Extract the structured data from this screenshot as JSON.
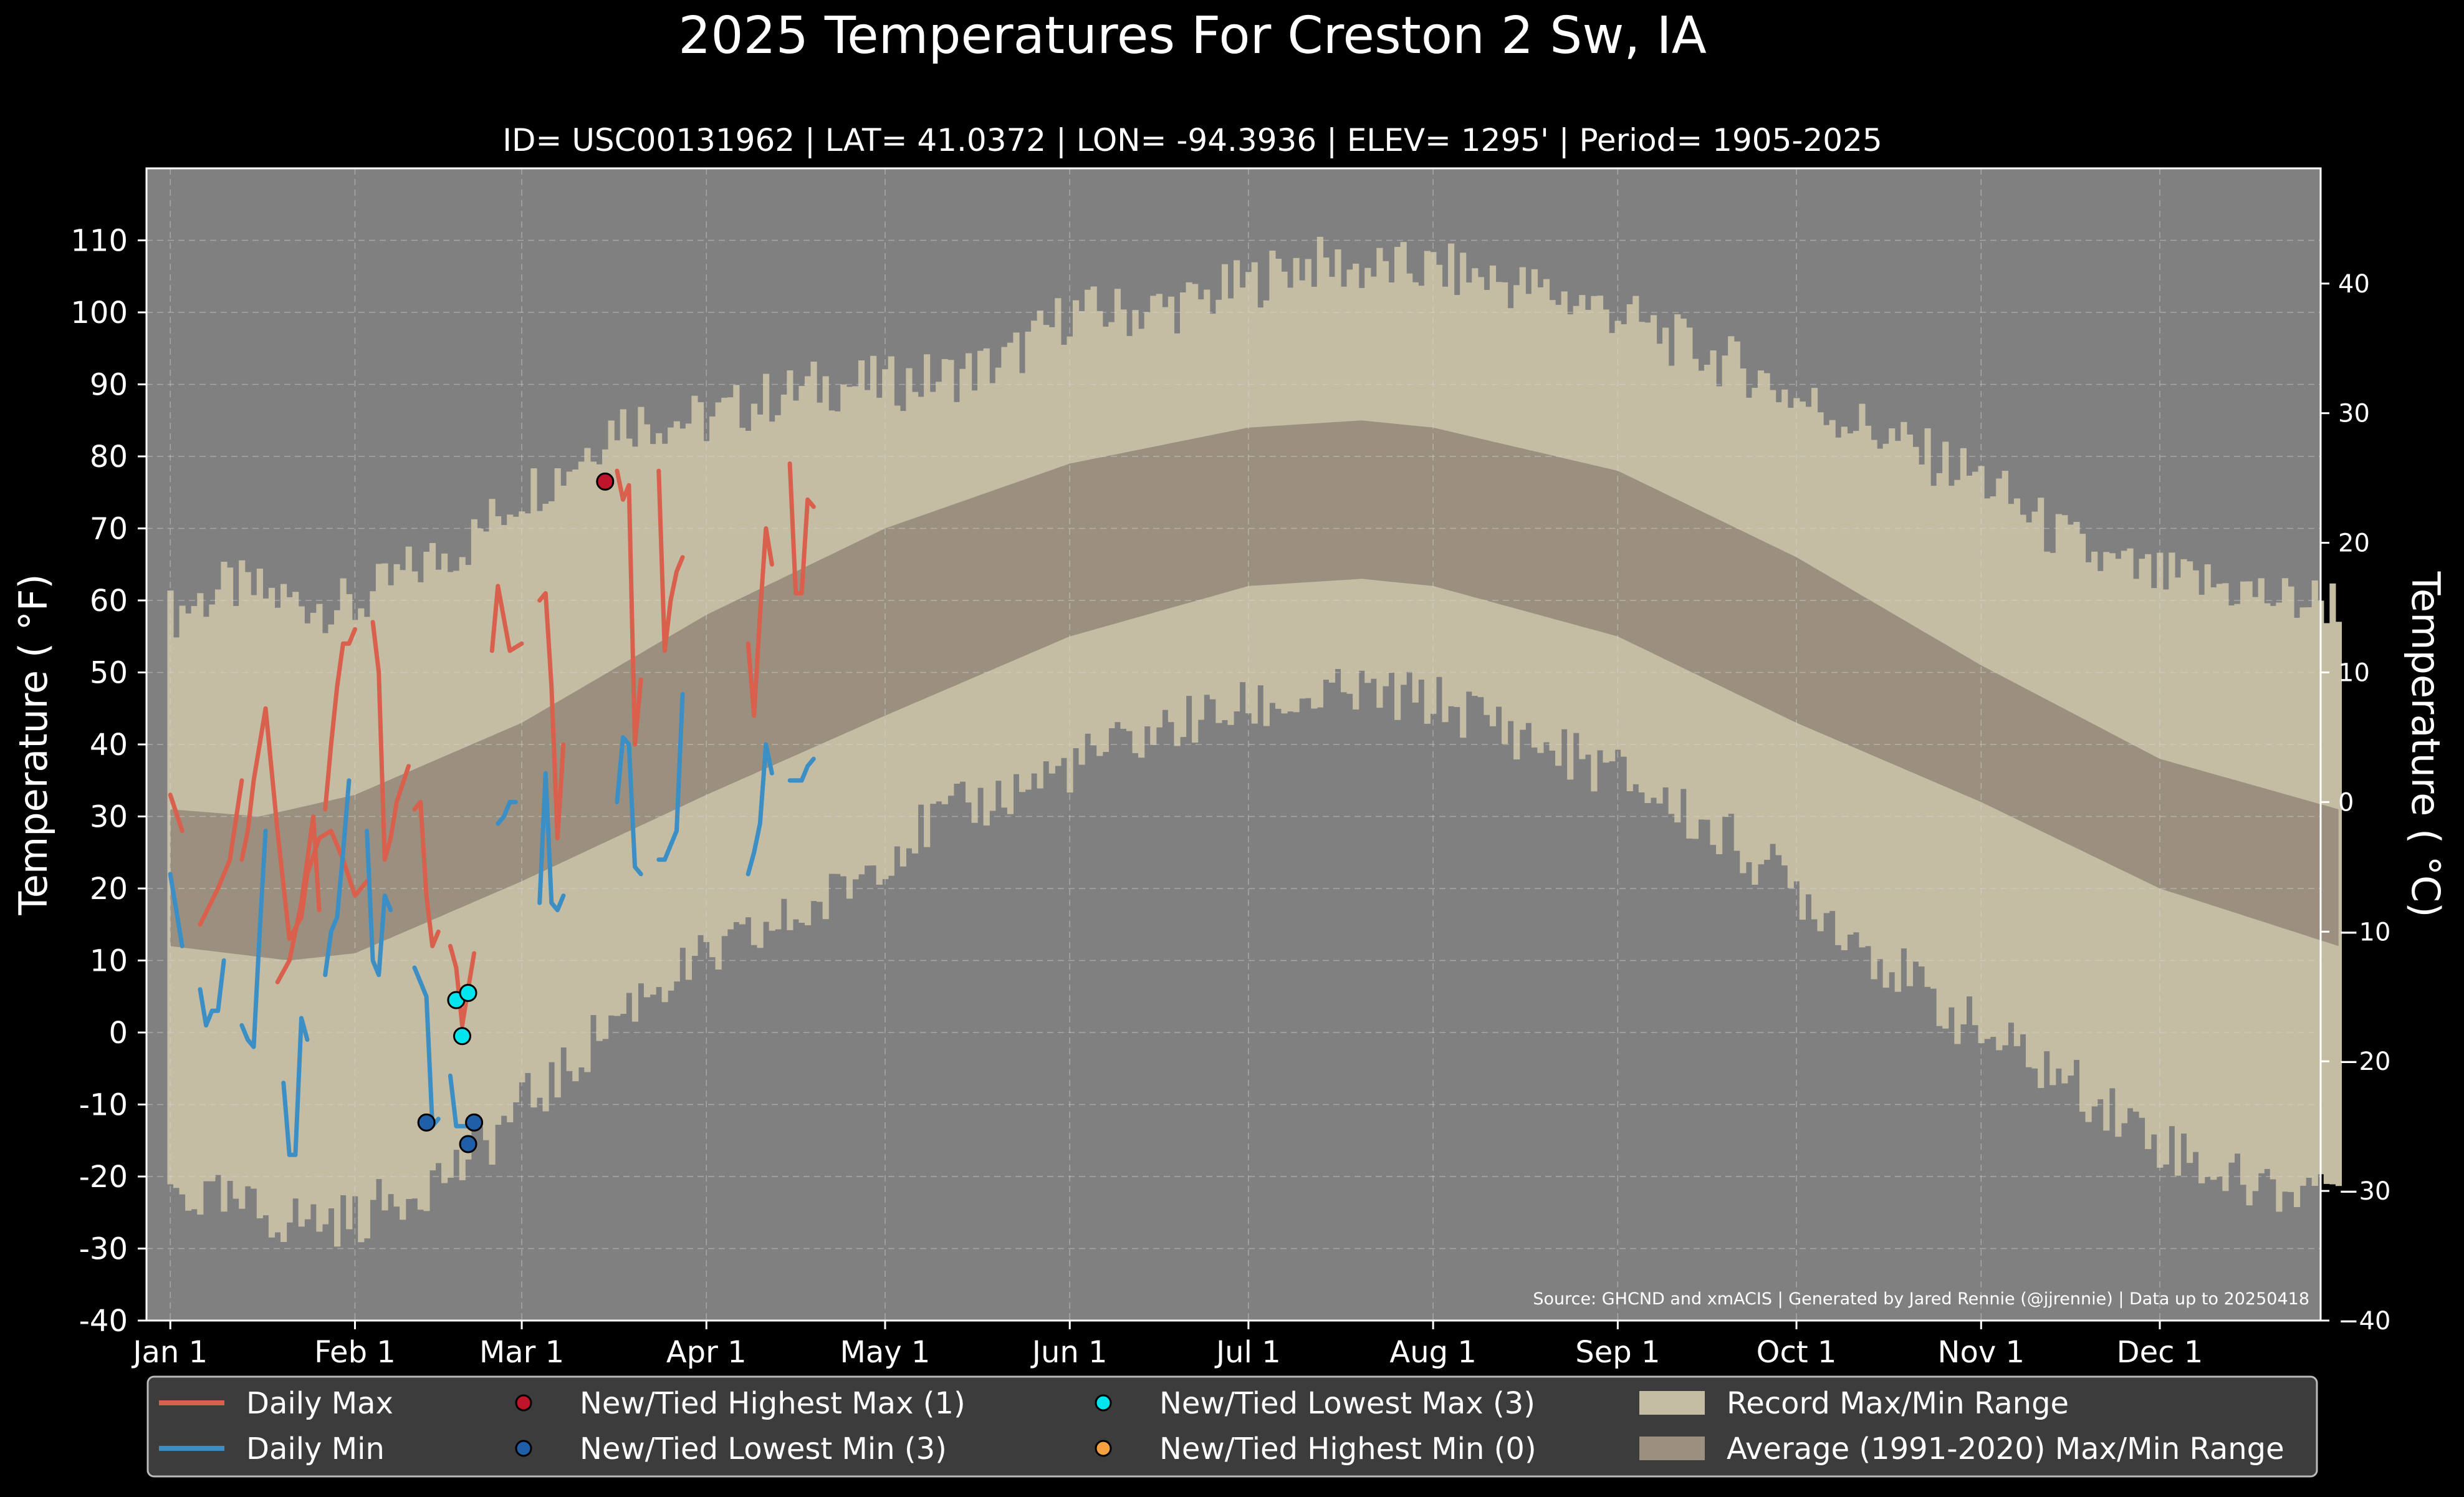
{
  "chart_data": {
    "type": "line",
    "title": "2025 Temperatures For Creston 2 Sw, IA",
    "subtitle": "ID= USC00131962 | LAT= 41.0372 | LON= -94.3936 | ELEV= 1295' | Period= 1905-2025",
    "ylabel": "Temperature ( °F)",
    "ylabel_right": "Temperature ( °C)",
    "ylim": [
      -40,
      120
    ],
    "yticks": [
      -40,
      -30,
      -20,
      -10,
      0,
      10,
      20,
      30,
      40,
      50,
      60,
      70,
      80,
      90,
      100,
      110
    ],
    "yticks_right_c": [
      -40,
      -30,
      -20,
      -10,
      0,
      10,
      20,
      30,
      40
    ],
    "xlim_doy": [
      -4,
      361
    ],
    "xticks": [
      {
        "label": "Jan 1",
        "doy": 0
      },
      {
        "label": "Feb 1",
        "doy": 31
      },
      {
        "label": "Mar 1",
        "doy": 59
      },
      {
        "label": "Apr 1",
        "doy": 90
      },
      {
        "label": "May 1",
        "doy": 120
      },
      {
        "label": "Jun 1",
        "doy": 151
      },
      {
        "label": "Jul 1",
        "doy": 181
      },
      {
        "label": "Aug 1",
        "doy": 212
      },
      {
        "label": "Sep 1",
        "doy": 243
      },
      {
        "label": "Oct 1",
        "doy": 273
      },
      {
        "label": "Nov 1",
        "doy": 304
      },
      {
        "label": "Dec 1",
        "doy": 334
      }
    ],
    "grid": true,
    "legend_position": "bottom",
    "source_note": "Source: GHCND and xmACIS | Generated by Jared Rennie (@jjrennie) | Data up to 20250418",
    "record_max_keypoints": [
      [
        0,
        58
      ],
      [
        10,
        62
      ],
      [
        20,
        60
      ],
      [
        31,
        59
      ],
      [
        40,
        64
      ],
      [
        50,
        68
      ],
      [
        59,
        75
      ],
      [
        66,
        78
      ],
      [
        75,
        85
      ],
      [
        90,
        85
      ],
      [
        100,
        88
      ],
      [
        110,
        90
      ],
      [
        120,
        90
      ],
      [
        130,
        91
      ],
      [
        140,
        93
      ],
      [
        151,
        100
      ],
      [
        160,
        100
      ],
      [
        170,
        101
      ],
      [
        181,
        104
      ],
      [
        190,
        107
      ],
      [
        200,
        106
      ],
      [
        212,
        106
      ],
      [
        220,
        105
      ],
      [
        230,
        103
      ],
      [
        243,
        100
      ],
      [
        255,
        95
      ],
      [
        265,
        92
      ],
      [
        273,
        88
      ],
      [
        285,
        84
      ],
      [
        295,
        80
      ],
      [
        304,
        77
      ],
      [
        315,
        70
      ],
      [
        325,
        65
      ],
      [
        334,
        63
      ],
      [
        345,
        62
      ],
      [
        355,
        60
      ],
      [
        364,
        60
      ]
    ],
    "record_min_keypoints": [
      [
        0,
        -22
      ],
      [
        10,
        -24
      ],
      [
        20,
        -26
      ],
      [
        31,
        -26
      ],
      [
        40,
        -22
      ],
      [
        50,
        -18
      ],
      [
        59,
        -10
      ],
      [
        66,
        -6
      ],
      [
        72,
        0
      ],
      [
        80,
        6
      ],
      [
        90,
        10
      ],
      [
        100,
        14
      ],
      [
        110,
        18
      ],
      [
        120,
        25
      ],
      [
        130,
        30
      ],
      [
        140,
        33
      ],
      [
        151,
        37
      ],
      [
        160,
        40
      ],
      [
        170,
        43
      ],
      [
        181,
        45
      ],
      [
        190,
        46
      ],
      [
        200,
        47
      ],
      [
        212,
        46
      ],
      [
        220,
        44
      ],
      [
        230,
        40
      ],
      [
        243,
        36
      ],
      [
        255,
        30
      ],
      [
        265,
        25
      ],
      [
        273,
        20
      ],
      [
        285,
        12
      ],
      [
        295,
        5
      ],
      [
        304,
        0
      ],
      [
        315,
        -5
      ],
      [
        325,
        -10
      ],
      [
        334,
        -15
      ],
      [
        345,
        -20
      ],
      [
        355,
        -22
      ],
      [
        364,
        -20
      ]
    ],
    "avg_max_keypoints": [
      [
        0,
        31
      ],
      [
        15,
        30
      ],
      [
        31,
        33
      ],
      [
        59,
        43
      ],
      [
        90,
        58
      ],
      [
        120,
        70
      ],
      [
        151,
        79
      ],
      [
        181,
        84
      ],
      [
        200,
        85
      ],
      [
        212,
        84
      ],
      [
        243,
        78
      ],
      [
        273,
        66
      ],
      [
        304,
        51
      ],
      [
        334,
        38
      ],
      [
        364,
        31
      ]
    ],
    "avg_min_keypoints": [
      [
        0,
        12
      ],
      [
        20,
        10
      ],
      [
        31,
        11
      ],
      [
        59,
        21
      ],
      [
        90,
        33
      ],
      [
        120,
        44
      ],
      [
        151,
        55
      ],
      [
        181,
        62
      ],
      [
        200,
        63
      ],
      [
        212,
        62
      ],
      [
        243,
        55
      ],
      [
        273,
        43
      ],
      [
        304,
        32
      ],
      [
        334,
        20
      ],
      [
        364,
        12
      ]
    ],
    "series": [
      {
        "name": "Daily Max",
        "color": "#d9604c",
        "segments": [
          [
            [
              0,
              33
            ],
            [
              2,
              28
            ]
          ],
          [
            [
              5,
              15
            ],
            [
              8,
              20
            ],
            [
              10,
              24
            ],
            [
              12,
              35
            ]
          ],
          [
            [
              12,
              24
            ],
            [
              13,
              28
            ],
            [
              14,
              35
            ],
            [
              16,
              45
            ],
            [
              18,
              28
            ],
            [
              20,
              13
            ],
            [
              22,
              16
            ],
            [
              23,
              22
            ],
            [
              25,
              27
            ],
            [
              27,
              28
            ],
            [
              29,
              24
            ],
            [
              31,
              19
            ],
            [
              33,
              21
            ]
          ],
          [
            [
              18,
              7
            ],
            [
              20,
              10
            ],
            [
              22,
              18
            ],
            [
              24,
              30
            ],
            [
              25,
              17
            ]
          ],
          [
            [
              26,
              31
            ],
            [
              27,
              40
            ],
            [
              28,
              48
            ],
            [
              29,
              54
            ],
            [
              30,
              54
            ],
            [
              31,
              56
            ]
          ],
          [
            [
              34,
              57
            ],
            [
              35,
              50
            ],
            [
              36,
              24
            ],
            [
              37,
              27
            ],
            [
              38,
              32
            ],
            [
              40,
              37
            ]
          ],
          [
            [
              41,
              31
            ],
            [
              42,
              32
            ],
            [
              43,
              19
            ],
            [
              44,
              12
            ],
            [
              45,
              14
            ]
          ],
          [
            [
              47,
              12
            ],
            [
              48,
              9
            ],
            [
              49,
              1
            ],
            [
              50,
              6
            ],
            [
              51,
              11
            ]
          ],
          [
            [
              54,
              53
            ],
            [
              55,
              62
            ],
            [
              57,
              53
            ],
            [
              59,
              54
            ]
          ],
          [
            [
              62,
              60
            ],
            [
              63,
              61
            ],
            [
              64,
              48
            ],
            [
              65,
              27
            ],
            [
              66,
              40
            ]
          ],
          [
            [
              75,
              78
            ],
            [
              76,
              74
            ],
            [
              77,
              76
            ],
            [
              78,
              40
            ],
            [
              79,
              49
            ]
          ],
          [
            [
              82,
              78
            ],
            [
              83,
              53
            ],
            [
              84,
              60
            ],
            [
              85,
              64
            ],
            [
              86,
              66
            ]
          ],
          [
            [
              97,
              54
            ],
            [
              98,
              44
            ],
            [
              99,
              58
            ],
            [
              100,
              70
            ],
            [
              101,
              65
            ]
          ],
          [
            [
              104,
              79
            ],
            [
              105,
              61
            ],
            [
              106,
              61
            ],
            [
              107,
              74
            ],
            [
              108,
              73
            ]
          ]
        ]
      },
      {
        "name": "Daily Min",
        "color": "#3b8fc4",
        "segments": [
          [
            [
              0,
              22
            ],
            [
              2,
              12
            ]
          ],
          [
            [
              5,
              6
            ],
            [
              6,
              1
            ],
            [
              7,
              3
            ],
            [
              8,
              3
            ],
            [
              9,
              10
            ]
          ],
          [
            [
              12,
              1
            ],
            [
              13,
              -1
            ],
            [
              14,
              -2
            ],
            [
              15,
              14
            ],
            [
              16,
              28
            ]
          ],
          [
            [
              19,
              -7
            ],
            [
              20,
              -17
            ],
            [
              21,
              -17
            ],
            [
              22,
              2
            ],
            [
              23,
              -1
            ]
          ],
          [
            [
              26,
              8
            ],
            [
              27,
              14
            ],
            [
              28,
              16
            ],
            [
              29,
              25
            ],
            [
              30,
              35
            ]
          ],
          [
            [
              33,
              28
            ],
            [
              34,
              10
            ],
            [
              35,
              8
            ],
            [
              36,
              19
            ],
            [
              37,
              17
            ]
          ],
          [
            [
              41,
              9
            ],
            [
              42,
              7
            ],
            [
              43,
              5
            ],
            [
              44,
              -13
            ],
            [
              45,
              -12
            ]
          ],
          [
            [
              47,
              -6
            ],
            [
              48,
              -13
            ],
            [
              49,
              -13
            ],
            [
              50,
              -13
            ],
            [
              51,
              -12
            ]
          ],
          [
            [
              55,
              29
            ],
            [
              56,
              30
            ],
            [
              57,
              32
            ],
            [
              58,
              32
            ]
          ],
          [
            [
              62,
              18
            ],
            [
              63,
              36
            ],
            [
              64,
              18
            ],
            [
              65,
              17
            ],
            [
              66,
              19
            ]
          ],
          [
            [
              75,
              32
            ],
            [
              76,
              41
            ],
            [
              77,
              40
            ],
            [
              78,
              23
            ],
            [
              79,
              22
            ]
          ],
          [
            [
              82,
              24
            ],
            [
              83,
              24
            ],
            [
              84,
              26
            ],
            [
              85,
              28
            ],
            [
              86,
              47
            ]
          ],
          [
            [
              97,
              22
            ],
            [
              98,
              25
            ],
            [
              99,
              29
            ],
            [
              100,
              40
            ],
            [
              101,
              36
            ]
          ],
          [
            [
              104,
              35
            ],
            [
              105,
              35
            ],
            [
              106,
              35
            ],
            [
              107,
              37
            ],
            [
              108,
              38
            ]
          ]
        ]
      }
    ],
    "markers": [
      {
        "name": "New/Tied Highest Max (1)",
        "color": "#c0142a",
        "points": [
          [
            73,
            76.5
          ]
        ]
      },
      {
        "name": "New/Tied Lowest Min (3)",
        "color": "#1f5fa8",
        "points": [
          [
            43,
            -12.5
          ],
          [
            50,
            -15.5
          ],
          [
            51,
            -12.5
          ]
        ]
      },
      {
        "name": "New/Tied Lowest Max (3)",
        "color": "#00e5ee",
        "points": [
          [
            48,
            4.5
          ],
          [
            49,
            -0.5
          ],
          [
            50,
            5.5
          ]
        ]
      },
      {
        "name": "New/Tied Highest Min (0)",
        "color": "#f5a142",
        "points": []
      }
    ],
    "legend": [
      {
        "kind": "line",
        "label": "Daily Max",
        "color": "#d9604c"
      },
      {
        "kind": "line",
        "label": "Daily Min",
        "color": "#3b8fc4"
      },
      {
        "kind": "dot",
        "label": "New/Tied Highest Max (1)",
        "color": "#c0142a"
      },
      {
        "kind": "dot",
        "label": "New/Tied Lowest Min (3)",
        "color": "#1f5fa8"
      },
      {
        "kind": "dot",
        "label": "New/Tied Lowest Max (3)",
        "color": "#00e5ee"
      },
      {
        "kind": "dot",
        "label": "New/Tied Highest Min (0)",
        "color": "#f5a142"
      },
      {
        "kind": "patch",
        "label": "Record Max/Min Range",
        "color": "#c5bca4"
      },
      {
        "kind": "patch",
        "label": "Average (1991-2020) Max/Min Range",
        "color": "#9b9080"
      }
    ],
    "colors": {
      "background": "#000000",
      "plot_background": "#808080",
      "record_band": "#c5bca4",
      "average_band": "#9b9080",
      "legend_background": "#3c3c3c"
    }
  }
}
